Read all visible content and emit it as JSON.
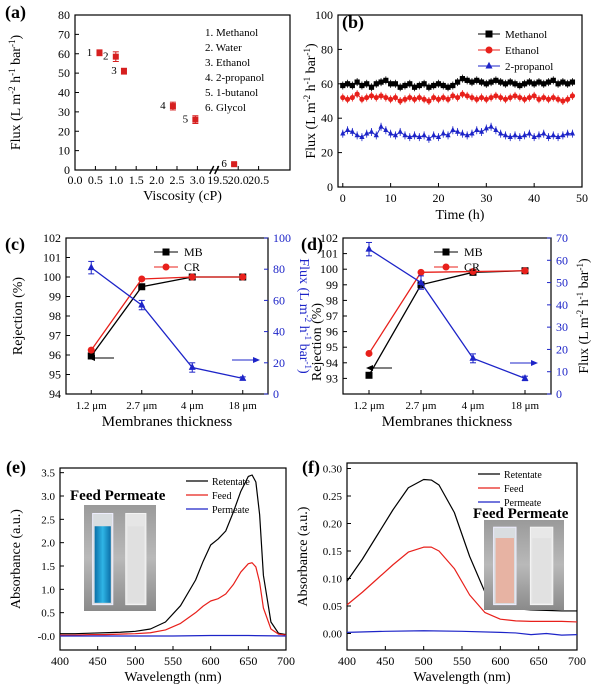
{
  "figure": {
    "colors": {
      "black": "#000000",
      "red": "#e8201b",
      "blue": "#1d24c8",
      "error_red": "#d61f1f"
    },
    "photo_e": {
      "label": "Feed Permeate",
      "left_vial_color": "#1592c8",
      "right_vial_color": "#e6e6e6"
    },
    "photo_f": {
      "label": "Feed Permeate",
      "left_vial_color": "#e7b3a3",
      "right_vial_color": "#e8e8e8"
    }
  },
  "chart_data": [
    {
      "id": "a",
      "panel_label": "(a)",
      "type": "scatter",
      "xlabel": "Viscosity (cP)",
      "ylabel": "Flux (L m-2 h-1 bar-1)",
      "xlim": [
        0.0,
        20.5
      ],
      "ylim": [
        0,
        80
      ],
      "x_break": {
        "between": [
          3.5,
          19.0
        ]
      },
      "x_tick_labels": [
        "0.0",
        "0.5",
        "1.0",
        "1.5",
        "2.0",
        "2.5",
        "3.0",
        "19.5",
        "20.0",
        "20.5"
      ],
      "y_ticks": [
        0,
        10,
        20,
        30,
        40,
        50,
        60,
        70,
        80
      ],
      "points": [
        {
          "label": "1",
          "x": 0.6,
          "y": 60.5,
          "err": 1.5
        },
        {
          "label": "2",
          "x": 1.0,
          "y": 58.5,
          "err": 2.5
        },
        {
          "label": "3",
          "x": 1.2,
          "y": 51.0,
          "err": 1.5
        },
        {
          "label": "4",
          "x": 2.4,
          "y": 33.0,
          "err": 2.0
        },
        {
          "label": "5",
          "x": 2.95,
          "y": 26.0,
          "err": 2.0
        },
        {
          "label": "6",
          "x": 19.9,
          "y": 3.0,
          "err": 0.5
        }
      ],
      "legend_text": [
        "1. Methanol",
        "2. Water",
        "3. Ethanol",
        "4. 2-propanol",
        "5. 1-butanol",
        "6. Glycol"
      ],
      "legend_position": "top-right"
    },
    {
      "id": "b",
      "panel_label": "(b)",
      "type": "line",
      "xlabel": "Time (h)",
      "ylabel": "Flux (L m-2 h-1 bar-1)",
      "xlim": [
        -1,
        50
      ],
      "ylim": [
        0,
        100
      ],
      "x_ticks": [
        0,
        10,
        20,
        30,
        40,
        50
      ],
      "y_ticks": [
        0,
        20,
        40,
        60,
        80,
        100
      ],
      "legend_position": "top-right",
      "series": [
        {
          "name": "Methanol",
          "marker": "square",
          "color": "#000000",
          "x": [
            0,
            1,
            2,
            3,
            4,
            5,
            6,
            7,
            8,
            9,
            10,
            11,
            12,
            13,
            14,
            15,
            16,
            17,
            18,
            19,
            20,
            21,
            22,
            23,
            24,
            25,
            26,
            27,
            28,
            29,
            30,
            31,
            32,
            33,
            34,
            35,
            36,
            37,
            38,
            39,
            40,
            41,
            42,
            43,
            44,
            45,
            46,
            47,
            48
          ],
          "y": [
            59,
            60,
            59,
            61,
            59,
            60,
            58,
            60,
            61,
            62,
            60,
            60,
            58,
            59,
            60,
            58,
            59,
            60,
            58,
            59,
            60,
            59,
            58,
            59,
            61,
            63,
            62,
            61,
            62,
            61,
            60,
            61,
            62,
            61,
            60,
            61,
            60,
            59,
            60,
            61,
            60,
            61,
            60,
            61,
            62,
            60,
            61,
            60,
            61
          ]
        },
        {
          "name": "Ethanol",
          "marker": "circle",
          "color": "#e8201b",
          "x": [
            0,
            1,
            2,
            3,
            4,
            5,
            6,
            7,
            8,
            9,
            10,
            11,
            12,
            13,
            14,
            15,
            16,
            17,
            18,
            19,
            20,
            21,
            22,
            23,
            24,
            25,
            26,
            27,
            28,
            29,
            30,
            31,
            32,
            33,
            34,
            35,
            36,
            37,
            38,
            39,
            40,
            41,
            42,
            43,
            44,
            45,
            46,
            47,
            48
          ],
          "y": [
            52,
            51,
            52,
            54,
            51,
            52,
            53,
            52,
            53,
            52,
            51,
            52,
            50,
            51,
            52,
            51,
            52,
            51,
            50,
            52,
            51,
            52,
            51,
            53,
            52,
            54,
            53,
            52,
            51,
            52,
            51,
            52,
            53,
            52,
            51,
            52,
            53,
            52,
            51,
            52,
            53,
            51,
            52,
            51,
            52,
            51,
            50,
            51,
            53
          ]
        },
        {
          "name": "2-propanol",
          "marker": "triangle",
          "color": "#1d24c8",
          "x": [
            0,
            1,
            2,
            3,
            4,
            5,
            6,
            7,
            8,
            9,
            10,
            11,
            12,
            13,
            14,
            15,
            16,
            17,
            18,
            19,
            20,
            21,
            22,
            23,
            24,
            25,
            26,
            27,
            28,
            29,
            30,
            31,
            32,
            33,
            34,
            35,
            36,
            37,
            38,
            39,
            40,
            41,
            42,
            43,
            44,
            45,
            46,
            47,
            48
          ],
          "y": [
            31,
            33,
            32,
            30,
            29,
            31,
            32,
            30,
            35,
            33,
            31,
            30,
            32,
            30,
            29,
            30,
            29,
            30,
            28,
            30,
            29,
            31,
            30,
            33,
            32,
            31,
            30,
            31,
            33,
            32,
            34,
            35,
            33,
            31,
            30,
            29,
            30,
            29,
            30,
            31,
            29,
            30,
            31,
            29,
            30,
            29,
            30,
            31,
            31
          ]
        }
      ]
    },
    {
      "id": "c",
      "panel_label": "(c)",
      "type": "line",
      "xlabel": "Membranes thickness",
      "ylabel": "Rejection (%)",
      "ylabel_right": "Flux (L m-2 h-1 bar-1)",
      "categories": [
        "1.2 μm",
        "2.7 μm",
        "4 μm",
        "18 μm"
      ],
      "ylim": [
        94,
        102
      ],
      "ylim_right": [
        0,
        100
      ],
      "y_ticks": [
        94,
        95,
        96,
        97,
        98,
        99,
        100,
        101,
        102
      ],
      "y_ticks_right": [
        0,
        20,
        40,
        60,
        80,
        100
      ],
      "legend_position": "top-center",
      "series": [
        {
          "name": "MB",
          "marker": "square",
          "color": "#000000",
          "axis": "left",
          "values": [
            95.95,
            99.5,
            100.0,
            100.0
          ]
        },
        {
          "name": "CR",
          "marker": "circle",
          "color": "#e8201b",
          "axis": "left",
          "values": [
            96.25,
            99.9,
            100.0,
            100.0
          ]
        },
        {
          "marker": "triangle",
          "color": "#1d24c8",
          "axis": "right",
          "values": [
            81,
            57,
            17,
            10
          ],
          "err": [
            4,
            3,
            3,
            1
          ]
        }
      ]
    },
    {
      "id": "d",
      "panel_label": "(d)",
      "type": "line",
      "xlabel": "Membranes thickness",
      "ylabel": "Rejection (%)",
      "ylabel_right": "Flux (L m-2 h-1 bar-1)",
      "categories": [
        "1.2 μm",
        "2.7 μm",
        "4 μm",
        "18 μm"
      ],
      "ylim": [
        92,
        102
      ],
      "ylim_right": [
        0,
        70
      ],
      "y_ticks": [
        93,
        94,
        95,
        96,
        97,
        98,
        99,
        100,
        101,
        102
      ],
      "y_ticks_right": [
        0,
        10,
        20,
        30,
        40,
        50,
        60,
        70
      ],
      "legend_position": "top-center",
      "series": [
        {
          "name": "MB",
          "marker": "square",
          "color": "#000000",
          "axis": "left",
          "values": [
            93.2,
            99.0,
            99.8,
            99.9
          ]
        },
        {
          "name": "CR",
          "marker": "circle",
          "color": "#e8201b",
          "axis": "left",
          "values": [
            94.6,
            99.8,
            99.85,
            99.9
          ]
        },
        {
          "marker": "triangle",
          "color": "#1d24c8",
          "axis": "right",
          "values": [
            65,
            50,
            16,
            7
          ],
          "err": [
            3,
            3,
            2,
            1
          ]
        }
      ]
    },
    {
      "id": "e",
      "panel_label": "(e)",
      "type": "line",
      "xlabel": "Wavelength (nm)",
      "ylabel": "Absorbance (a.u.)",
      "xlim": [
        400,
        700
      ],
      "ylim": [
        -0.3,
        3.6
      ],
      "x_ticks": [
        400,
        450,
        500,
        550,
        600,
        650,
        700
      ],
      "y_ticks": [
        -0.0,
        0.5,
        1.0,
        1.5,
        2.0,
        2.5,
        3.0,
        3.5
      ],
      "y_tick_labels": [
        "-0.0",
        "0.5",
        "1.0",
        "1.5",
        "2.0",
        "2.5",
        "3.0",
        "3.5"
      ],
      "legend_position": "top-right",
      "series": [
        {
          "name": "Retentate",
          "color": "#000000",
          "x": [
            400,
            420,
            440,
            460,
            480,
            500,
            520,
            540,
            560,
            580,
            590,
            600,
            610,
            620,
            630,
            640,
            650,
            655,
            660,
            665,
            670,
            680,
            690,
            700
          ],
          "y": [
            0.05,
            0.05,
            0.06,
            0.07,
            0.08,
            0.1,
            0.15,
            0.3,
            0.65,
            1.2,
            1.6,
            1.95,
            2.08,
            2.25,
            2.65,
            3.1,
            3.42,
            3.45,
            3.3,
            2.6,
            1.3,
            0.3,
            0.06,
            0.03
          ]
        },
        {
          "name": "Feed",
          "color": "#e8201b",
          "x": [
            400,
            420,
            440,
            460,
            480,
            500,
            520,
            540,
            560,
            580,
            590,
            600,
            610,
            620,
            630,
            640,
            650,
            655,
            660,
            665,
            670,
            680,
            690,
            700
          ],
          "y": [
            0.02,
            0.02,
            0.03,
            0.03,
            0.04,
            0.05,
            0.07,
            0.13,
            0.27,
            0.5,
            0.64,
            0.75,
            0.8,
            0.9,
            1.1,
            1.37,
            1.55,
            1.57,
            1.48,
            1.15,
            0.6,
            0.15,
            0.04,
            0.02
          ]
        },
        {
          "name": "Permeate",
          "color": "#1d24c8",
          "x": [
            400,
            450,
            500,
            550,
            600,
            650,
            700
          ],
          "y": [
            0.0,
            0.0,
            0.0,
            0.0,
            0.01,
            0.01,
            0.0
          ]
        }
      ]
    },
    {
      "id": "f",
      "panel_label": "(f)",
      "type": "line",
      "xlabel": "Wavelength (nm)",
      "ylabel": "Absorbance (a.u.)",
      "xlim": [
        400,
        700
      ],
      "ylim": [
        -0.03,
        0.31
      ],
      "x_ticks": [
        400,
        450,
        500,
        550,
        600,
        650,
        700
      ],
      "y_ticks": [
        0.0,
        0.05,
        0.1,
        0.15,
        0.2,
        0.25,
        0.3
      ],
      "y_tick_labels": [
        "0.00",
        "0.05",
        "0.10",
        "0.15",
        "0.20",
        "0.25",
        "0.30"
      ],
      "legend_position": "top-right",
      "series": [
        {
          "name": "Retentate",
          "color": "#000000",
          "x": [
            400,
            420,
            440,
            460,
            480,
            500,
            510,
            520,
            540,
            560,
            580,
            600,
            620,
            640,
            660,
            680,
            700
          ],
          "y": [
            0.095,
            0.135,
            0.18,
            0.225,
            0.265,
            0.28,
            0.279,
            0.27,
            0.22,
            0.14,
            0.075,
            0.05,
            0.045,
            0.043,
            0.042,
            0.041,
            0.041
          ]
        },
        {
          "name": "Feed",
          "color": "#e8201b",
          "x": [
            400,
            420,
            440,
            460,
            480,
            500,
            510,
            520,
            540,
            560,
            580,
            600,
            620,
            640,
            660,
            680,
            700
          ],
          "y": [
            0.052,
            0.075,
            0.1,
            0.125,
            0.148,
            0.157,
            0.157,
            0.15,
            0.118,
            0.07,
            0.038,
            0.026,
            0.023,
            0.022,
            0.022,
            0.022,
            0.021
          ]
        },
        {
          "name": "Permeate",
          "color": "#1d24c8",
          "x": [
            400,
            450,
            500,
            550,
            600,
            620,
            640,
            660,
            680,
            700
          ],
          "y": [
            0.002,
            0.004,
            0.005,
            0.004,
            0.002,
            0.001,
            -0.002,
            0.0,
            -0.003,
            -0.002
          ]
        }
      ]
    }
  ]
}
